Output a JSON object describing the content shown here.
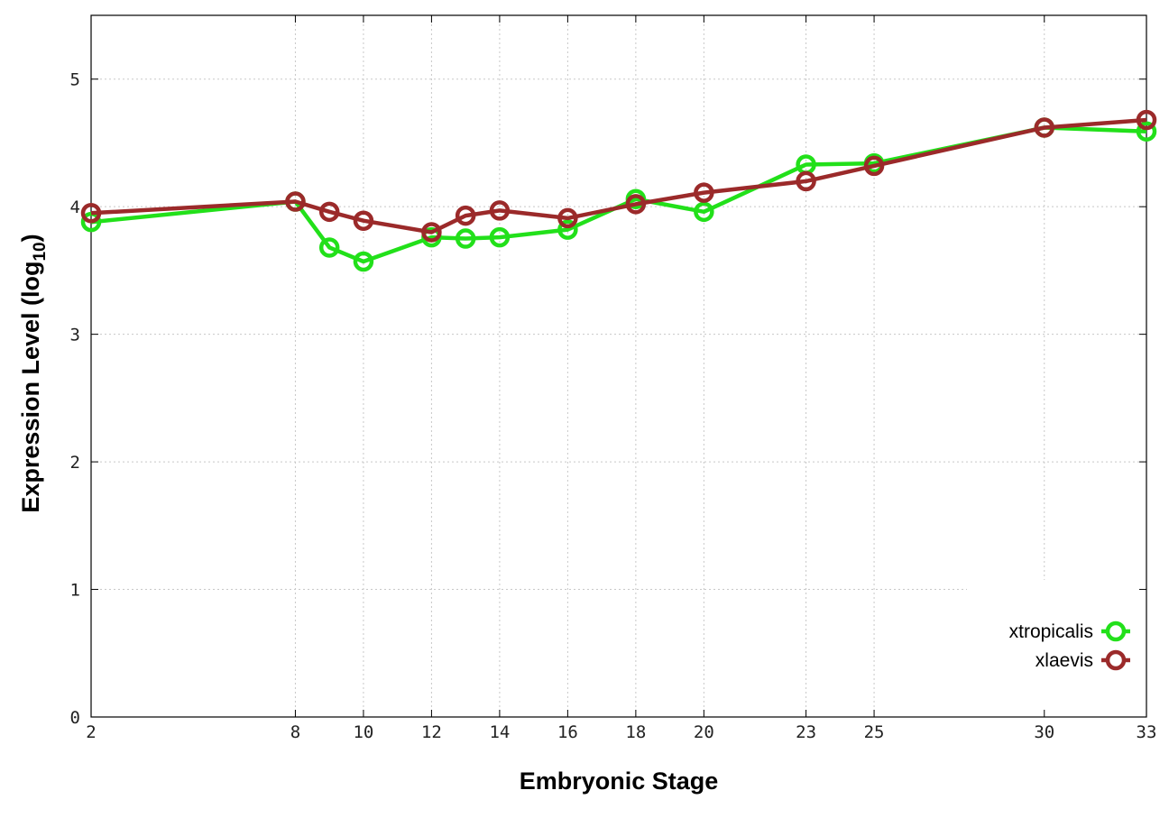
{
  "chart_data": {
    "type": "line",
    "title": "",
    "xlabel": "Embryonic Stage",
    "ylabel_main": "Expression Level (log",
    "ylabel_sub": "10",
    "ylabel_close": ")",
    "xlim": [
      2,
      33
    ],
    "ylim": [
      0,
      5.5
    ],
    "x_ticks": [
      {
        "value": 2,
        "label": "2"
      },
      {
        "value": 8,
        "label": "8"
      },
      {
        "value": 10,
        "label": "10"
      },
      {
        "value": 12,
        "label": "12"
      },
      {
        "value": 14,
        "label": "14"
      },
      {
        "value": 16,
        "label": "16"
      },
      {
        "value": 18,
        "label": "18"
      },
      {
        "value": 20,
        "label": "20"
      },
      {
        "value": 23,
        "label": "23"
      },
      {
        "value": 25,
        "label": "25"
      },
      {
        "value": 30,
        "label": "30"
      },
      {
        "value": 33,
        "label": "33"
      }
    ],
    "y_ticks": [
      {
        "value": 0,
        "label": "0"
      },
      {
        "value": 1,
        "label": "1"
      },
      {
        "value": 2,
        "label": "2"
      },
      {
        "value": 3,
        "label": "3"
      },
      {
        "value": 4,
        "label": "4"
      },
      {
        "value": 5,
        "label": "5"
      }
    ],
    "grid": true,
    "legend_position": "bottom-right",
    "series": [
      {
        "name": "xtropicalis",
        "color": "#22e01a",
        "points": [
          {
            "x": 2,
            "y": 3.88
          },
          {
            "x": 8,
            "y": 4.04
          },
          {
            "x": 9,
            "y": 3.68
          },
          {
            "x": 10,
            "y": 3.57
          },
          {
            "x": 12,
            "y": 3.76
          },
          {
            "x": 13,
            "y": 3.75
          },
          {
            "x": 14,
            "y": 3.76
          },
          {
            "x": 16,
            "y": 3.82
          },
          {
            "x": 18,
            "y": 4.06
          },
          {
            "x": 20,
            "y": 3.96
          },
          {
            "x": 23,
            "y": 4.33
          },
          {
            "x": 25,
            "y": 4.34
          },
          {
            "x": 30,
            "y": 4.62
          },
          {
            "x": 33,
            "y": 4.59
          }
        ]
      },
      {
        "name": "xlaevis",
        "color": "#9b2a2a",
        "points": [
          {
            "x": 2,
            "y": 3.95
          },
          {
            "x": 8,
            "y": 4.04
          },
          {
            "x": 9,
            "y": 3.96
          },
          {
            "x": 10,
            "y": 3.89
          },
          {
            "x": 12,
            "y": 3.8
          },
          {
            "x": 13,
            "y": 3.93
          },
          {
            "x": 14,
            "y": 3.97
          },
          {
            "x": 16,
            "y": 3.91
          },
          {
            "x": 18,
            "y": 4.02
          },
          {
            "x": 20,
            "y": 4.11
          },
          {
            "x": 23,
            "y": 4.2
          },
          {
            "x": 25,
            "y": 4.32
          },
          {
            "x": 30,
            "y": 4.62
          },
          {
            "x": 33,
            "y": 4.68
          }
        ]
      }
    ]
  }
}
